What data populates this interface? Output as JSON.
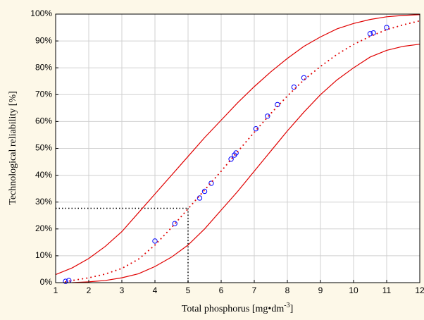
{
  "chart_data": {
    "type": "scatter",
    "xlabel": [
      "Total phosphorus [mg•dm",
      "-3",
      "]"
    ],
    "ylabel": "Technological reliability [%]",
    "xlim": [
      1,
      12
    ],
    "xticks": [
      1,
      2,
      3,
      4,
      5,
      6,
      7,
      8,
      9,
      10,
      11,
      12
    ],
    "ylim": [
      0,
      100
    ],
    "yticks": [
      {
        "value": 0,
        "label": "0%"
      },
      {
        "value": 10,
        "label": "10%"
      },
      {
        "value": 20,
        "label": "20%"
      },
      {
        "value": 30,
        "label": "30%"
      },
      {
        "value": 40,
        "label": "40%"
      },
      {
        "value": 50,
        "label": "50%"
      },
      {
        "value": 60,
        "label": "60%"
      },
      {
        "value": 70,
        "label": "70%"
      },
      {
        "value": 80,
        "label": "80%"
      },
      {
        "value": 90,
        "label": "90%"
      },
      {
        "value": 100,
        "label": "100%"
      }
    ],
    "grid": true,
    "reference": {
      "x": 5,
      "y": 27.7
    },
    "series": [
      {
        "kind": "points",
        "color": "#0000ff",
        "x": [
          1.3,
          1.4,
          4.0,
          4.6,
          5.35,
          5.5,
          5.7,
          6.3,
          6.4,
          6.45,
          7.05,
          7.4,
          7.7,
          8.2,
          8.5,
          10.5,
          10.6,
          11.0
        ],
        "values": [
          0.5,
          0.8,
          15.5,
          22,
          31.5,
          34,
          37,
          46,
          47.5,
          48.3,
          57.3,
          62,
          66.3,
          72.8,
          76.3,
          92.7,
          93,
          95
        ]
      },
      {
        "kind": "dotted",
        "color": "#e00000",
        "x": [
          1.3,
          1.5,
          2,
          2.5,
          3,
          3.5,
          4,
          4.5,
          5,
          5.5,
          6,
          6.5,
          7,
          7.5,
          8,
          8.5,
          9,
          9.5,
          10,
          10.5,
          11,
          11.5,
          12
        ],
        "values": [
          0.3,
          0.8,
          1.8,
          3.2,
          5.3,
          8.7,
          14,
          20.5,
          27.5,
          34.5,
          41.5,
          48.8,
          56,
          63,
          69.5,
          75.5,
          80.5,
          85,
          88.7,
          91.7,
          94.2,
          96,
          97.5
        ]
      },
      {
        "kind": "solid",
        "color": "#e00000",
        "x": [
          1,
          1.5,
          2,
          2.5,
          3,
          3.5,
          4,
          4.5,
          5,
          5.5,
          6,
          6.5,
          7,
          7.5,
          8,
          8.5,
          9,
          9.5,
          10,
          10.5,
          11,
          11.5,
          12
        ],
        "values": [
          3,
          5.5,
          9,
          13.5,
          19,
          26,
          33,
          40,
          47,
          54,
          60.5,
          67,
          73,
          78.5,
          83.5,
          88,
          91.5,
          94.5,
          96.5,
          98,
          99,
          99.5,
          99.8
        ]
      },
      {
        "kind": "solid",
        "color": "#e00000",
        "x": [
          1.5,
          2,
          2.5,
          3,
          3.5,
          4,
          4.5,
          5,
          5.5,
          6,
          6.5,
          7,
          7.5,
          8,
          8.5,
          9,
          9.5,
          10,
          10.5,
          11,
          11.5,
          12
        ],
        "values": [
          0,
          0.3,
          0.8,
          1.8,
          3.3,
          6,
          9.5,
          14,
          20,
          27,
          34,
          41.5,
          49,
          56.5,
          63.5,
          70,
          75.5,
          80,
          84,
          86.5,
          88,
          88.8
        ]
      }
    ]
  }
}
